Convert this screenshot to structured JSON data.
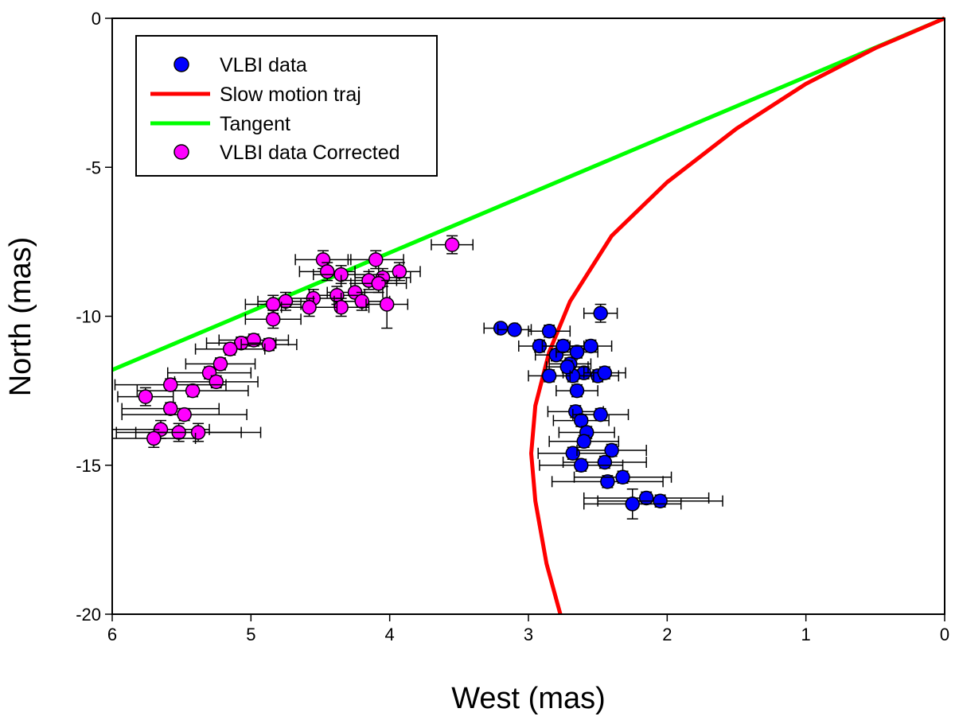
{
  "chart_data": {
    "type": "scatter",
    "title": "",
    "xlabel": "West (mas)",
    "ylabel": "North (mas)",
    "xlim": [
      6,
      0
    ],
    "ylim": [
      -20,
      0
    ],
    "x_ticks": [
      6,
      5,
      4,
      3,
      2,
      1,
      0
    ],
    "y_ticks": [
      0,
      -5,
      -10,
      -15,
      -20
    ],
    "grid": false,
    "legend_position": "top-left",
    "legend": [
      {
        "label": "VLBI data",
        "kind": "marker",
        "color": "#0000ff"
      },
      {
        "label": "Slow motion traj",
        "kind": "line",
        "color": "#ff0000"
      },
      {
        "label": "Tangent",
        "kind": "line",
        "color": "#00ff00"
      },
      {
        "label": "VLBI data Corrected",
        "kind": "marker",
        "color": "#ff00ff"
      }
    ],
    "series": [
      {
        "name": "VLBI data",
        "color": "#0000ff",
        "points": [
          {
            "x": 3.2,
            "y": -10.4,
            "xerr": 0.12,
            "yerr": 0.15
          },
          {
            "x": 3.1,
            "y": -10.45,
            "xerr": 0.12,
            "yerr": 0.15
          },
          {
            "x": 2.92,
            "y": -11.0,
            "xerr": 0.15,
            "yerr": 0.2
          },
          {
            "x": 2.85,
            "y": -10.5,
            "xerr": 0.15,
            "yerr": 0.2
          },
          {
            "x": 2.8,
            "y": -11.3,
            "xerr": 0.15,
            "yerr": 0.2
          },
          {
            "x": 2.75,
            "y": -11.0,
            "xerr": 0.15,
            "yerr": 0.2
          },
          {
            "x": 2.7,
            "y": -11.6,
            "xerr": 0.15,
            "yerr": 0.2
          },
          {
            "x": 2.65,
            "y": -11.2,
            "xerr": 0.15,
            "yerr": 0.2
          },
          {
            "x": 2.6,
            "y": -11.9,
            "xerr": 0.15,
            "yerr": 0.2
          },
          {
            "x": 2.55,
            "y": -11.0,
            "xerr": 0.15,
            "yerr": 0.2
          },
          {
            "x": 2.5,
            "y": -12.0,
            "xerr": 0.15,
            "yerr": 0.2
          },
          {
            "x": 2.45,
            "y": -11.9,
            "xerr": 0.15,
            "yerr": 0.2
          },
          {
            "x": 2.48,
            "y": -9.9,
            "xerr": 0.12,
            "yerr": 0.3
          },
          {
            "x": 2.68,
            "y": -12.0,
            "xerr": 0.15,
            "yerr": 0.2
          },
          {
            "x": 2.72,
            "y": -11.7,
            "xerr": 0.15,
            "yerr": 0.2
          },
          {
            "x": 2.85,
            "y": -12.0,
            "xerr": 0.15,
            "yerr": 0.2
          },
          {
            "x": 2.65,
            "y": -12.5,
            "xerr": 0.15,
            "yerr": 0.2
          },
          {
            "x": 2.66,
            "y": -13.2,
            "xerr": 0.2,
            "yerr": 0.2
          },
          {
            "x": 2.62,
            "y": -13.5,
            "xerr": 0.2,
            "yerr": 0.2
          },
          {
            "x": 2.48,
            "y": -13.3,
            "xerr": 0.2,
            "yerr": 0.2
          },
          {
            "x": 2.58,
            "y": -13.9,
            "xerr": 0.2,
            "yerr": 0.2
          },
          {
            "x": 2.6,
            "y": -14.2,
            "xerr": 0.25,
            "yerr": 0.2
          },
          {
            "x": 2.68,
            "y": -14.6,
            "xerr": 0.25,
            "yerr": 0.2
          },
          {
            "x": 2.4,
            "y": -14.5,
            "xerr": 0.25,
            "yerr": 0.2
          },
          {
            "x": 2.45,
            "y": -14.9,
            "xerr": 0.3,
            "yerr": 0.2
          },
          {
            "x": 2.62,
            "y": -15.0,
            "xerr": 0.3,
            "yerr": 0.2
          },
          {
            "x": 2.43,
            "y": -15.55,
            "xerr": 0.4,
            "yerr": 0.2
          },
          {
            "x": 2.32,
            "y": -15.4,
            "xerr": 0.35,
            "yerr": 0.2
          },
          {
            "x": 2.15,
            "y": -16.1,
            "xerr": 0.45,
            "yerr": 0.2
          },
          {
            "x": 2.05,
            "y": -16.2,
            "xerr": 0.45,
            "yerr": 0.2
          },
          {
            "x": 2.25,
            "y": -16.3,
            "xerr": 0.35,
            "yerr": 0.5
          }
        ]
      },
      {
        "name": "VLBI data Corrected",
        "color": "#ff00ff",
        "points": [
          {
            "x": 3.55,
            "y": -7.6,
            "xerr": 0.15,
            "yerr": 0.3
          },
          {
            "x": 4.48,
            "y": -8.1,
            "xerr": 0.2,
            "yerr": 0.3
          },
          {
            "x": 4.1,
            "y": -8.1,
            "xerr": 0.2,
            "yerr": 0.3
          },
          {
            "x": 3.93,
            "y": -8.5,
            "xerr": 0.15,
            "yerr": 0.3
          },
          {
            "x": 4.45,
            "y": -8.5,
            "xerr": 0.2,
            "yerr": 0.3
          },
          {
            "x": 4.35,
            "y": -8.6,
            "xerr": 0.2,
            "yerr": 0.3
          },
          {
            "x": 4.05,
            "y": -8.7,
            "xerr": 0.2,
            "yerr": 0.3
          },
          {
            "x": 4.15,
            "y": -8.8,
            "xerr": 0.2,
            "yerr": 0.3
          },
          {
            "x": 4.08,
            "y": -8.9,
            "xerr": 0.2,
            "yerr": 0.3
          },
          {
            "x": 4.25,
            "y": -9.2,
            "xerr": 0.2,
            "yerr": 0.3
          },
          {
            "x": 4.38,
            "y": -9.3,
            "xerr": 0.2,
            "yerr": 0.3
          },
          {
            "x": 4.55,
            "y": -9.4,
            "xerr": 0.2,
            "yerr": 0.3
          },
          {
            "x": 4.75,
            "y": -9.5,
            "xerr": 0.2,
            "yerr": 0.3
          },
          {
            "x": 4.2,
            "y": -9.5,
            "xerr": 0.2,
            "yerr": 0.3
          },
          {
            "x": 4.84,
            "y": -9.6,
            "xerr": 0.2,
            "yerr": 0.3
          },
          {
            "x": 4.02,
            "y": -9.6,
            "xerr": 0.15,
            "yerr": 0.8
          },
          {
            "x": 4.35,
            "y": -9.7,
            "xerr": 0.2,
            "yerr": 0.3
          },
          {
            "x": 4.58,
            "y": -9.7,
            "xerr": 0.2,
            "yerr": 0.3
          },
          {
            "x": 4.84,
            "y": -10.1,
            "xerr": 0.2,
            "yerr": 0.3
          },
          {
            "x": 4.98,
            "y": -10.8,
            "xerr": 0.25,
            "yerr": 0.2
          },
          {
            "x": 5.07,
            "y": -10.9,
            "xerr": 0.25,
            "yerr": 0.2
          },
          {
            "x": 4.87,
            "y": -10.95,
            "xerr": 0.2,
            "yerr": 0.2
          },
          {
            "x": 5.15,
            "y": -11.1,
            "xerr": 0.25,
            "yerr": 0.2
          },
          {
            "x": 5.22,
            "y": -11.6,
            "xerr": 0.25,
            "yerr": 0.2
          },
          {
            "x": 5.3,
            "y": -11.9,
            "xerr": 0.3,
            "yerr": 0.2
          },
          {
            "x": 5.25,
            "y": -12.2,
            "xerr": 0.3,
            "yerr": 0.2
          },
          {
            "x": 5.42,
            "y": -12.5,
            "xerr": 0.4,
            "yerr": 0.2
          },
          {
            "x": 5.58,
            "y": -12.3,
            "xerr": 0.4,
            "yerr": 0.2
          },
          {
            "x": 5.76,
            "y": -12.7,
            "xerr": 0.2,
            "yerr": 0.3
          },
          {
            "x": 5.58,
            "y": -13.1,
            "xerr": 0.35,
            "yerr": 0.2
          },
          {
            "x": 5.48,
            "y": -13.3,
            "xerr": 0.45,
            "yerr": 0.2
          },
          {
            "x": 5.65,
            "y": -13.8,
            "xerr": 0.35,
            "yerr": 0.3
          },
          {
            "x": 5.52,
            "y": -13.9,
            "xerr": 0.45,
            "yerr": 0.3
          },
          {
            "x": 5.38,
            "y": -13.9,
            "xerr": 0.45,
            "yerr": 0.3
          },
          {
            "x": 5.7,
            "y": -14.1,
            "xerr": 0.3,
            "yerr": 0.3
          }
        ]
      },
      {
        "name": "Tangent",
        "kind": "line",
        "color": "#00ff00",
        "points": [
          {
            "x": 0,
            "y": 0
          },
          {
            "x": 6,
            "y": -11.8
          }
        ]
      },
      {
        "name": "Slow motion traj",
        "kind": "line",
        "color": "#ff0000",
        "points": [
          {
            "x": 0,
            "y": 0
          },
          {
            "x": 0.5,
            "y": -1.0
          },
          {
            "x": 1.0,
            "y": -2.2
          },
          {
            "x": 1.5,
            "y": -3.7
          },
          {
            "x": 2.0,
            "y": -5.5
          },
          {
            "x": 2.4,
            "y": -7.3
          },
          {
            "x": 2.7,
            "y": -9.5
          },
          {
            "x": 2.85,
            "y": -11.2
          },
          {
            "x": 2.95,
            "y": -13.0
          },
          {
            "x": 2.98,
            "y": -14.6
          },
          {
            "x": 2.95,
            "y": -16.2
          },
          {
            "x": 2.87,
            "y": -18.3
          },
          {
            "x": 2.77,
            "y": -20.0
          }
        ]
      }
    ]
  }
}
